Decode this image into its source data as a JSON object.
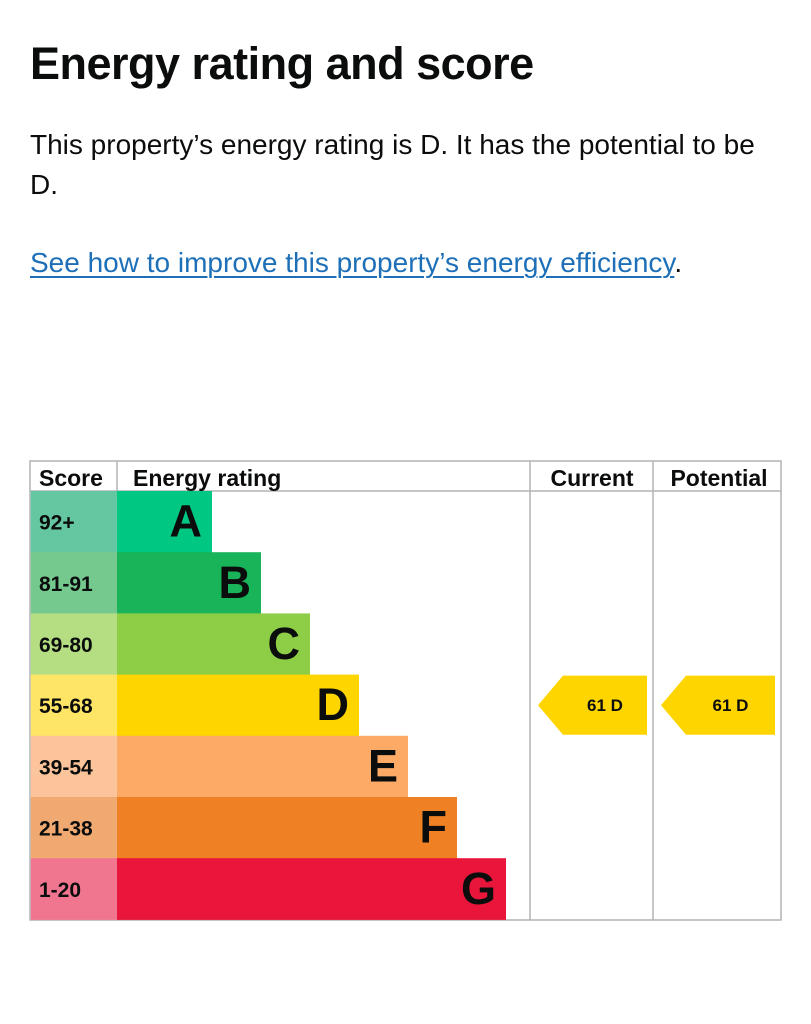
{
  "header": {
    "title": "Energy rating and score"
  },
  "summary": {
    "text": "This property’s energy rating is D. It has the potential to be D."
  },
  "improve": {
    "link_text": "See how to improve this property’s energy efficiency",
    "suffix": "."
  },
  "chart_data": {
    "type": "table",
    "columns": [
      "Score",
      "Energy rating",
      "Current",
      "Potential"
    ],
    "bands": [
      {
        "score": "92+",
        "rating": "A",
        "band_color": "#008054",
        "score_color": "#64c7a2"
      },
      {
        "score": "81-91",
        "rating": "B",
        "band_color": "#19b459",
        "score_color": "#75c98e"
      },
      {
        "score": "69-80",
        "rating": "C",
        "band_color": "#8dce46",
        "score_color": "#b5de83"
      },
      {
        "score": "55-68",
        "rating": "D",
        "band_color": "#ffd500",
        "score_color": "#fee566"
      },
      {
        "score": "39-54",
        "rating": "E",
        "band_color": "#fcaa65",
        "score_color": "#fcc49a"
      },
      {
        "score": "21-38",
        "rating": "F",
        "band_color": "#ef8023",
        "score_color": "#f0a970"
      },
      {
        "score": "1-20",
        "rating": "G",
        "band_color": "#e9153b",
        "score_color": "#f07690"
      }
    ],
    "current": {
      "score": 61,
      "rating": "D"
    },
    "potential": {
      "score": 61,
      "rating": "D"
    },
    "colors": {
      "band_a": "#00c781",
      "band_b": "#19b459",
      "band_c": "#8dce46",
      "band_d": "#ffd500",
      "band_e": "#fcaa65",
      "band_f": "#ef8023",
      "band_g": "#e9153b",
      "grid": "#b1b4b6"
    }
  }
}
